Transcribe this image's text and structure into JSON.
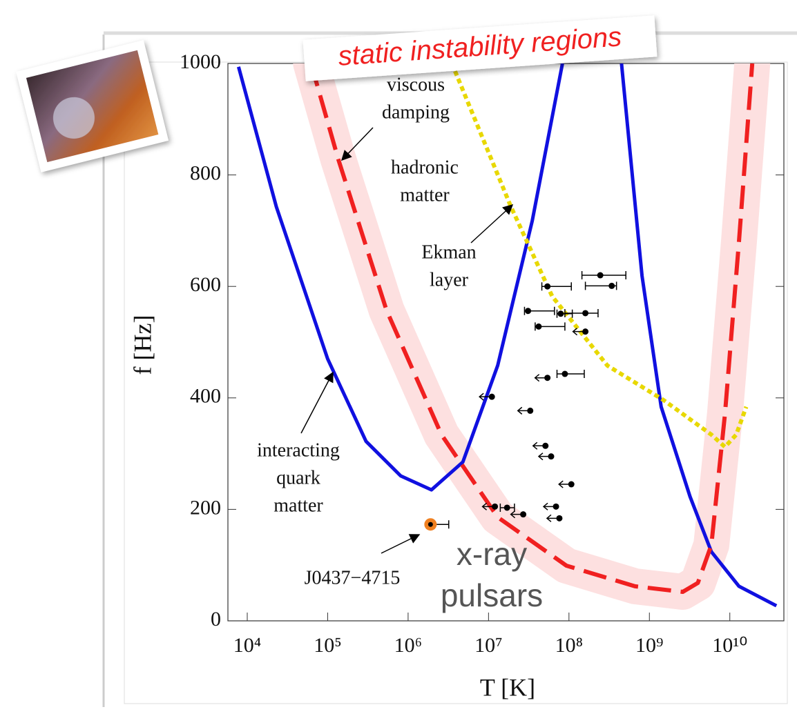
{
  "chart_data": {
    "type": "line",
    "title": "static instability regions",
    "x_label": "T [K]",
    "y_label": "f [Hz]",
    "x_scale": "log",
    "xlim": [
      5750,
      47000000000
    ],
    "ylim": [
      0,
      1000
    ],
    "xticks": [
      {
        "value": 10000,
        "label": "10⁴"
      },
      {
        "value": 100000,
        "label": "10⁵"
      },
      {
        "value": 1000000,
        "label": "10⁶"
      },
      {
        "value": 10000000,
        "label": "10⁷"
      },
      {
        "value": 100000000,
        "label": "10⁸"
      },
      {
        "value": 1000000000,
        "label": "10⁹"
      },
      {
        "value": 10000000000,
        "label": "10¹⁰"
      }
    ],
    "yticks": [
      0,
      200,
      400,
      600,
      800,
      1000
    ],
    "series": [
      {
        "color": "#1010e0",
        "style": "solid",
        "x": [
          7800,
          23000,
          100000,
          300000,
          810000,
          1950000,
          4800000,
          13000000,
          35000000,
          83000000
        ],
        "y": [
          994,
          743,
          470,
          322,
          260,
          235,
          285,
          458,
          718,
          1000
        ]
      },
      {
        "color": "#1010e0",
        "style": "solid",
        "x": [
          450000000,
          810000000,
          1400000000,
          3200000000,
          5900000000,
          13000000000,
          38000000000
        ],
        "y": [
          1000,
          619,
          384,
          223,
          124,
          62,
          27
        ]
      },
      {
        "color": "#f02020",
        "style": "dashed",
        "band": "#fde0e0",
        "x": [
          62000,
          135000,
          540000,
          2600000,
          13000000,
          93000000,
          660000000,
          2600000000,
          4000000000,
          5900000000,
          8700000000,
          13000000000,
          19000000000
        ],
        "y": [
          1000,
          829,
          557,
          334,
          186,
          99,
          62,
          52,
          68,
          136,
          371,
          681,
          1000
        ]
      },
      {
        "color": "#e8d800",
        "style": "dotted",
        "x": [
          3500000,
          19000000,
          62000000,
          300000000,
          1500000000,
          5900000000,
          8700000000,
          12000000000,
          16000000000
        ],
        "y": [
          1000,
          743,
          582,
          458,
          396,
          334,
          312,
          334,
          384
        ]
      }
    ],
    "points": {
      "color": "#000000",
      "x": [
        245000000,
        340000000,
        54000000,
        31000000,
        79000000,
        160000000,
        42000000,
        160000000,
        89000000,
        54000000,
        11000000,
        33000000,
        51000000,
        60000000,
        107000000,
        12000000,
        17000000,
        27000000,
        69000000,
        76000000
      ],
      "y": [
        620,
        601,
        600,
        556,
        551,
        552,
        528,
        519,
        443,
        436,
        402,
        377,
        314,
        295,
        245,
        205,
        203,
        191,
        205,
        184
      ],
      "x_low": [
        145000000,
        160000000,
        46000000,
        28000000,
        71000000,
        89000000,
        38000000,
        null,
        71000000,
        null,
        null,
        null,
        null,
        null,
        null,
        null,
        14000000,
        null,
        null,
        null
      ],
      "x_high": [
        510000000,
        390000000,
        107000000,
        66000000,
        110000000,
        230000000,
        89000000,
        null,
        155000000,
        null,
        null,
        null,
        null,
        null,
        null,
        null,
        21000000,
        null,
        null,
        null
      ]
    },
    "highlight": {
      "x": 1900000,
      "y": 173,
      "x_high": 3200000,
      "color": "#f08020"
    },
    "annotations": [
      {
        "text": [
          "viscous",
          "damping"
        ]
      },
      {
        "text": [
          "hadronic",
          "matter"
        ]
      },
      {
        "text": [
          "Ekman",
          "layer"
        ]
      },
      {
        "text": [
          "interacting",
          "quark",
          "matter"
        ]
      },
      {
        "text": [
          "J0437−4715"
        ]
      },
      {
        "text": [
          "x-ray",
          "pulsars"
        ]
      }
    ]
  }
}
